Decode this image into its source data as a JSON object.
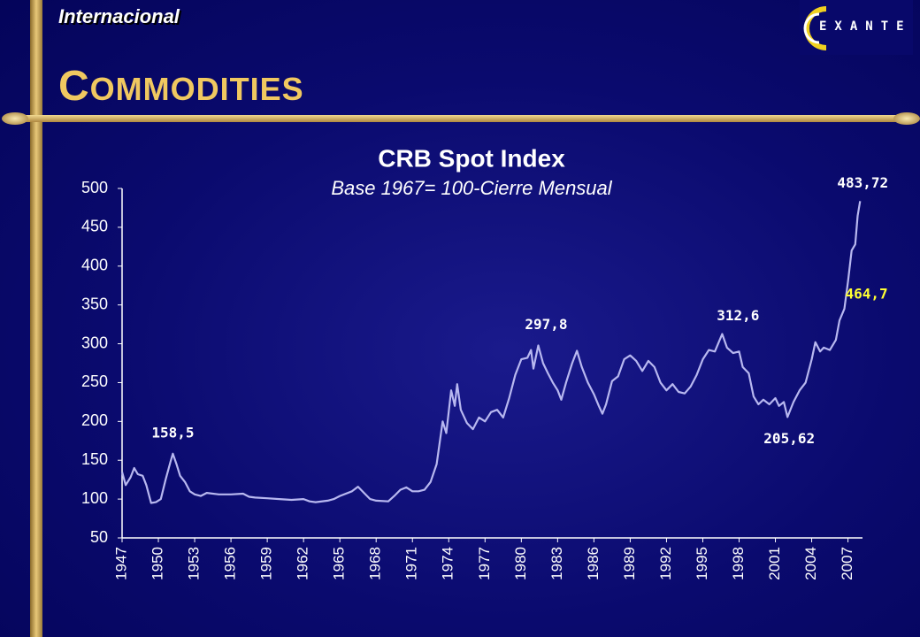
{
  "header": {
    "section": "Internacional",
    "title": "COMMODITIES",
    "logo": "EXANTE"
  },
  "chart_data": {
    "type": "line",
    "title": "CRB Spot Index",
    "subtitle": "Base 1967= 100-Cierre Mensual",
    "color": "#b8b8f0",
    "x": [
      1947.0,
      1947.3,
      1947.7,
      1948.0,
      1948.3,
      1948.7,
      1949.0,
      1949.4,
      1949.8,
      1950.2,
      1950.6,
      1951.0,
      1951.2,
      1951.5,
      1951.8,
      1952.2,
      1952.6,
      1953.0,
      1953.5,
      1954,
      1955,
      1956,
      1957,
      1957.5,
      1958,
      1959,
      1960,
      1961,
      1962,
      1962.5,
      1963,
      1964,
      1964.5,
      1965,
      1966,
      1966.5,
      1967,
      1967.5,
      1968,
      1969,
      1969.5,
      1970,
      1970.5,
      1971,
      1971.5,
      1972,
      1972.5,
      1973,
      1973.5,
      1973.8,
      1974.2,
      1974.5,
      1974.7,
      1975,
      1975.5,
      1976,
      1976.5,
      1977,
      1977.5,
      1978,
      1978.5,
      1979,
      1979.5,
      1980,
      1980.5,
      1980.8,
      1981,
      1981.4,
      1981.8,
      1982.2,
      1982.6,
      1983,
      1983.3,
      1983.7,
      1984.2,
      1984.6,
      1985,
      1985.5,
      1986,
      1986.4,
      1986.7,
      1987,
      1987.5,
      1988,
      1988.5,
      1989,
      1989.5,
      1990,
      1990.5,
      1991,
      1991.5,
      1992,
      1992.5,
      1993,
      1993.5,
      1994,
      1994.5,
      1995,
      1995.5,
      1996,
      1996.6,
      1997,
      1997.5,
      1998,
      1998.3,
      1998.8,
      1999.2,
      1999.6,
      2000,
      2000.5,
      2001,
      2001.3,
      2001.7,
      2002,
      2002.5,
      2003,
      2003.5,
      2004,
      2004.3,
      2004.7,
      2005,
      2005.5,
      2006,
      2006.3,
      2006.7,
      2007,
      2007.3,
      2007.6,
      2007.8,
      2008.0
    ],
    "values": [
      135,
      118,
      128,
      140,
      132,
      130,
      118,
      95,
      96,
      100,
      125,
      148,
      158.5,
      145,
      130,
      122,
      110,
      106,
      104,
      108,
      106,
      106,
      107,
      103,
      102,
      101,
      100,
      99,
      100,
      97,
      96,
      98,
      100,
      104,
      110,
      116,
      108,
      100,
      98,
      97,
      104,
      112,
      115,
      110,
      110,
      112,
      122,
      145,
      200,
      185,
      240,
      220,
      248,
      215,
      198,
      190,
      205,
      200,
      212,
      215,
      205,
      230,
      260,
      280,
      282,
      292,
      268,
      297.8,
      275,
      262,
      250,
      240,
      228,
      250,
      275,
      291,
      270,
      250,
      235,
      220,
      210,
      222,
      252,
      258,
      280,
      285,
      278,
      265,
      278,
      270,
      250,
      240,
      248,
      238,
      236,
      245,
      260,
      280,
      292,
      290,
      312.6,
      295,
      288,
      290,
      270,
      262,
      232,
      222,
      228,
      222,
      230,
      220,
      225,
      205.62,
      225,
      240,
      250,
      280,
      302,
      290,
      295,
      292,
      305,
      330,
      345,
      380,
      420,
      428,
      464.7,
      483.72
    ],
    "xlim": [
      1947,
      2008.2
    ],
    "ylim": [
      50,
      500
    ],
    "xticks": [
      1947,
      1950,
      1953,
      1956,
      1959,
      1962,
      1965,
      1968,
      1971,
      1974,
      1977,
      1980,
      1983,
      1986,
      1989,
      1992,
      1995,
      1998,
      2001,
      2004,
      2007
    ],
    "yticks": [
      50,
      100,
      150,
      200,
      250,
      300,
      350,
      400,
      450,
      500
    ],
    "annotations": [
      {
        "label": "158,5",
        "value": 158.5,
        "x": 1951.2,
        "color": "#ffffff"
      },
      {
        "label": "297,8",
        "value": 297.8,
        "x": 1981.4,
        "color": "#ffffff"
      },
      {
        "label": "312,6",
        "value": 312.6,
        "x": 1996.6,
        "color": "#ffffff"
      },
      {
        "label": "205,62",
        "value": 205.62,
        "x": 2002,
        "color": "#ffffff"
      },
      {
        "label": "483,72",
        "value": 483.72,
        "x": 2008.0,
        "color": "#ffffff"
      },
      {
        "label": "464,7",
        "value": 464.7,
        "x": 2007.8,
        "color": "#ffff33"
      }
    ]
  }
}
